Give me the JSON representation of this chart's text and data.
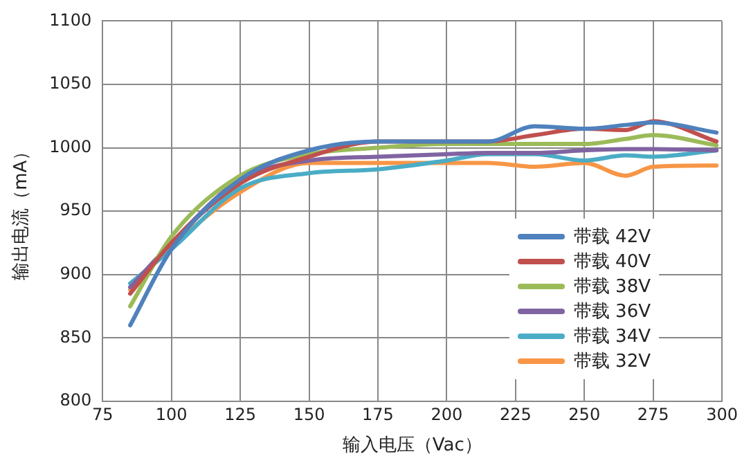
{
  "chart_data": {
    "type": "line",
    "xlabel": "输入电压（Vac）",
    "ylabel": "输出电流（mA）",
    "x": [
      85,
      100,
      125,
      150,
      175,
      200,
      215,
      232,
      250,
      265,
      275,
      298
    ],
    "series": [
      {
        "name": "带载 42V",
        "color": "#4f81bd",
        "values": [
          860,
          920,
          975,
          998,
          1005,
          1005,
          1005,
          1017,
          1015,
          1018,
          1020,
          1012
        ]
      },
      {
        "name": "带载 40V",
        "color": "#c0504d",
        "values": [
          885,
          925,
          972,
          993,
          1005,
          1005,
          1005,
          1010,
          1015,
          1014,
          1021,
          1005
        ]
      },
      {
        "name": "带载 38V",
        "color": "#9bbb59",
        "values": [
          875,
          930,
          978,
          995,
          1000,
          1003,
          1003,
          1003,
          1003,
          1007,
          1010,
          1002
        ]
      },
      {
        "name": "带载 36V",
        "color": "#8064a2",
        "values": [
          890,
          925,
          975,
          990,
          993,
          995,
          996,
          996,
          998,
          999,
          999,
          998
        ]
      },
      {
        "name": "带载 34V",
        "color": "#4bacc6",
        "values": [
          893,
          920,
          968,
          980,
          983,
          990,
          995,
          995,
          990,
          994,
          993,
          998
        ]
      },
      {
        "name": "带载 32V",
        "color": "#f79646",
        "values": [
          888,
          922,
          965,
          988,
          988,
          988,
          988,
          985,
          988,
          978,
          985,
          986
        ]
      }
    ],
    "xlim": [
      75,
      300
    ],
    "xticks": [
      75,
      100,
      125,
      150,
      175,
      200,
      225,
      250,
      275,
      300
    ],
    "ylim": [
      800,
      1100
    ],
    "yticks": [
      800,
      850,
      900,
      950,
      1000,
      1050,
      1100
    ],
    "grid": true,
    "legend": "bottom right",
    "marker": "none",
    "line_style": "solid"
  }
}
